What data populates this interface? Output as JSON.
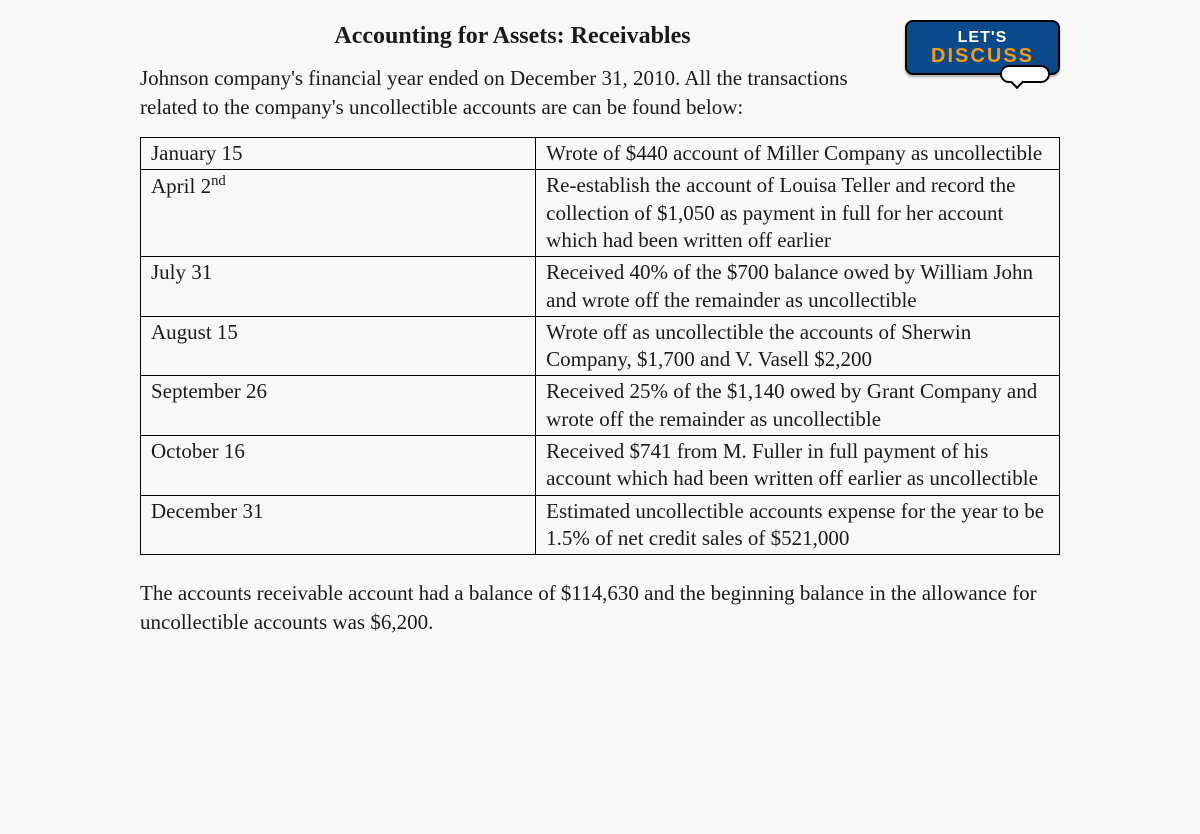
{
  "title": "Accounting for Assets: Receivables",
  "badge": {
    "line1": "LET'S",
    "line2": "DISCUSS",
    "bg_color": "#0a4a8a",
    "text1_color": "#ffffff",
    "text2_color": "#f39c12"
  },
  "intro": "Johnson company's financial year ended on December 31, 2010. All the transactions related to the company's uncollectible accounts are can be found below:",
  "table": {
    "border_color": "#000000",
    "rows": [
      {
        "date": "January 15",
        "desc": "Wrote of $440 account of Miller Company as uncollectible"
      },
      {
        "date_html": "April 2<span class=\"sup\">nd</span>",
        "date": "April 2nd",
        "desc": "Re-establish the account of Louisa Teller and record the collection of $1,050 as payment in full for her account which had been written off earlier"
      },
      {
        "date": "July 31",
        "desc": "Received 40% of the $700 balance owed by William John and wrote off the remainder as uncollectible"
      },
      {
        "date": "August 15",
        "desc": "Wrote off as uncollectible the accounts of Sherwin Company, $1,700 and V. Vasell $2,200"
      },
      {
        "date": "September 26",
        "desc": "Received 25% of the $1,140 owed by Grant Company and wrote off the remainder as uncollectible"
      },
      {
        "date": "October 16",
        "desc": "Received $741 from M. Fuller in full payment of his account which had been written off earlier as uncollectible"
      },
      {
        "date": "December 31",
        "desc": "Estimated uncollectible accounts expense for the year to be 1.5% of net credit sales of $521,000"
      }
    ]
  },
  "footer": "The accounts receivable account had a balance of $114,630 and the beginning balance in the allowance for uncollectible accounts was $6,200."
}
